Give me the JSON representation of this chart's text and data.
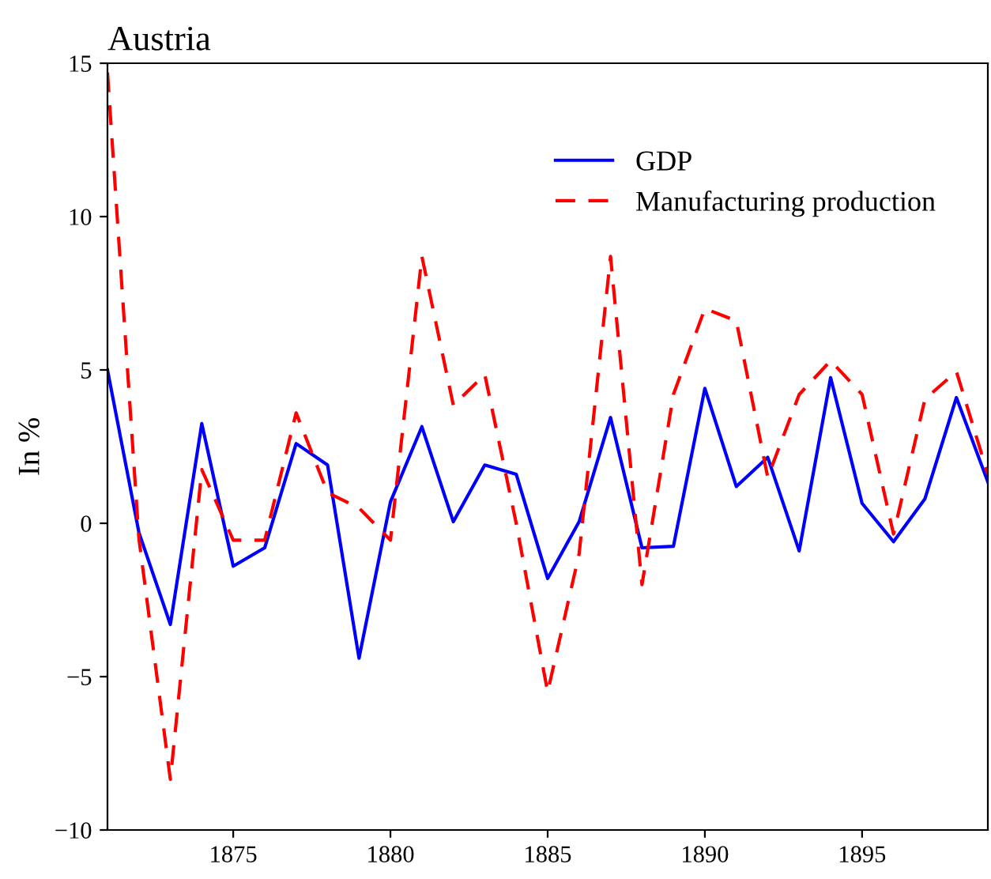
{
  "chart_data": {
    "type": "line",
    "title": "Austria",
    "ylabel": "In %",
    "x": [
      1871,
      1872,
      1873,
      1874,
      1875,
      1876,
      1877,
      1878,
      1879,
      1880,
      1881,
      1882,
      1883,
      1884,
      1885,
      1886,
      1887,
      1888,
      1889,
      1890,
      1891,
      1892,
      1893,
      1894,
      1895,
      1896,
      1897,
      1898,
      1899
    ],
    "series": [
      {
        "name": "GDP",
        "color": "#0000ff",
        "line_style": "solid",
        "values": [
          5.0,
          -0.3,
          -3.3,
          3.25,
          -1.4,
          -0.8,
          2.6,
          1.9,
          -4.4,
          0.7,
          3.15,
          0.05,
          1.9,
          1.6,
          -1.8,
          0.05,
          3.45,
          -0.8,
          -0.75,
          4.4,
          1.2,
          2.15,
          -0.9,
          4.75,
          0.65,
          -0.6,
          0.8,
          4.1,
          1.35
        ]
      },
      {
        "name": "Manufacturing production",
        "color": "#ff0000",
        "line_style": "dashed",
        "values": [
          14.7,
          -0.5,
          -8.35,
          1.75,
          -0.55,
          -0.55,
          3.6,
          1.0,
          0.5,
          -0.55,
          8.7,
          3.85,
          4.85,
          0.0,
          -5.5,
          -1.0,
          8.7,
          -2.0,
          4.2,
          7.0,
          6.6,
          1.5,
          4.2,
          5.3,
          4.2,
          -0.35,
          4.05,
          4.95,
          1.6
        ]
      }
    ],
    "xlim": [
      1871,
      1899
    ],
    "xticks": [
      1875,
      1880,
      1885,
      1890,
      1895
    ],
    "ylim": [
      -10,
      15
    ],
    "yticks": [
      {
        "value": -10,
        "label": "−10"
      },
      {
        "value": -5,
        "label": "−5"
      },
      0,
      5,
      10,
      15
    ],
    "grid": false,
    "legend": "top right",
    "marker": "none"
  }
}
